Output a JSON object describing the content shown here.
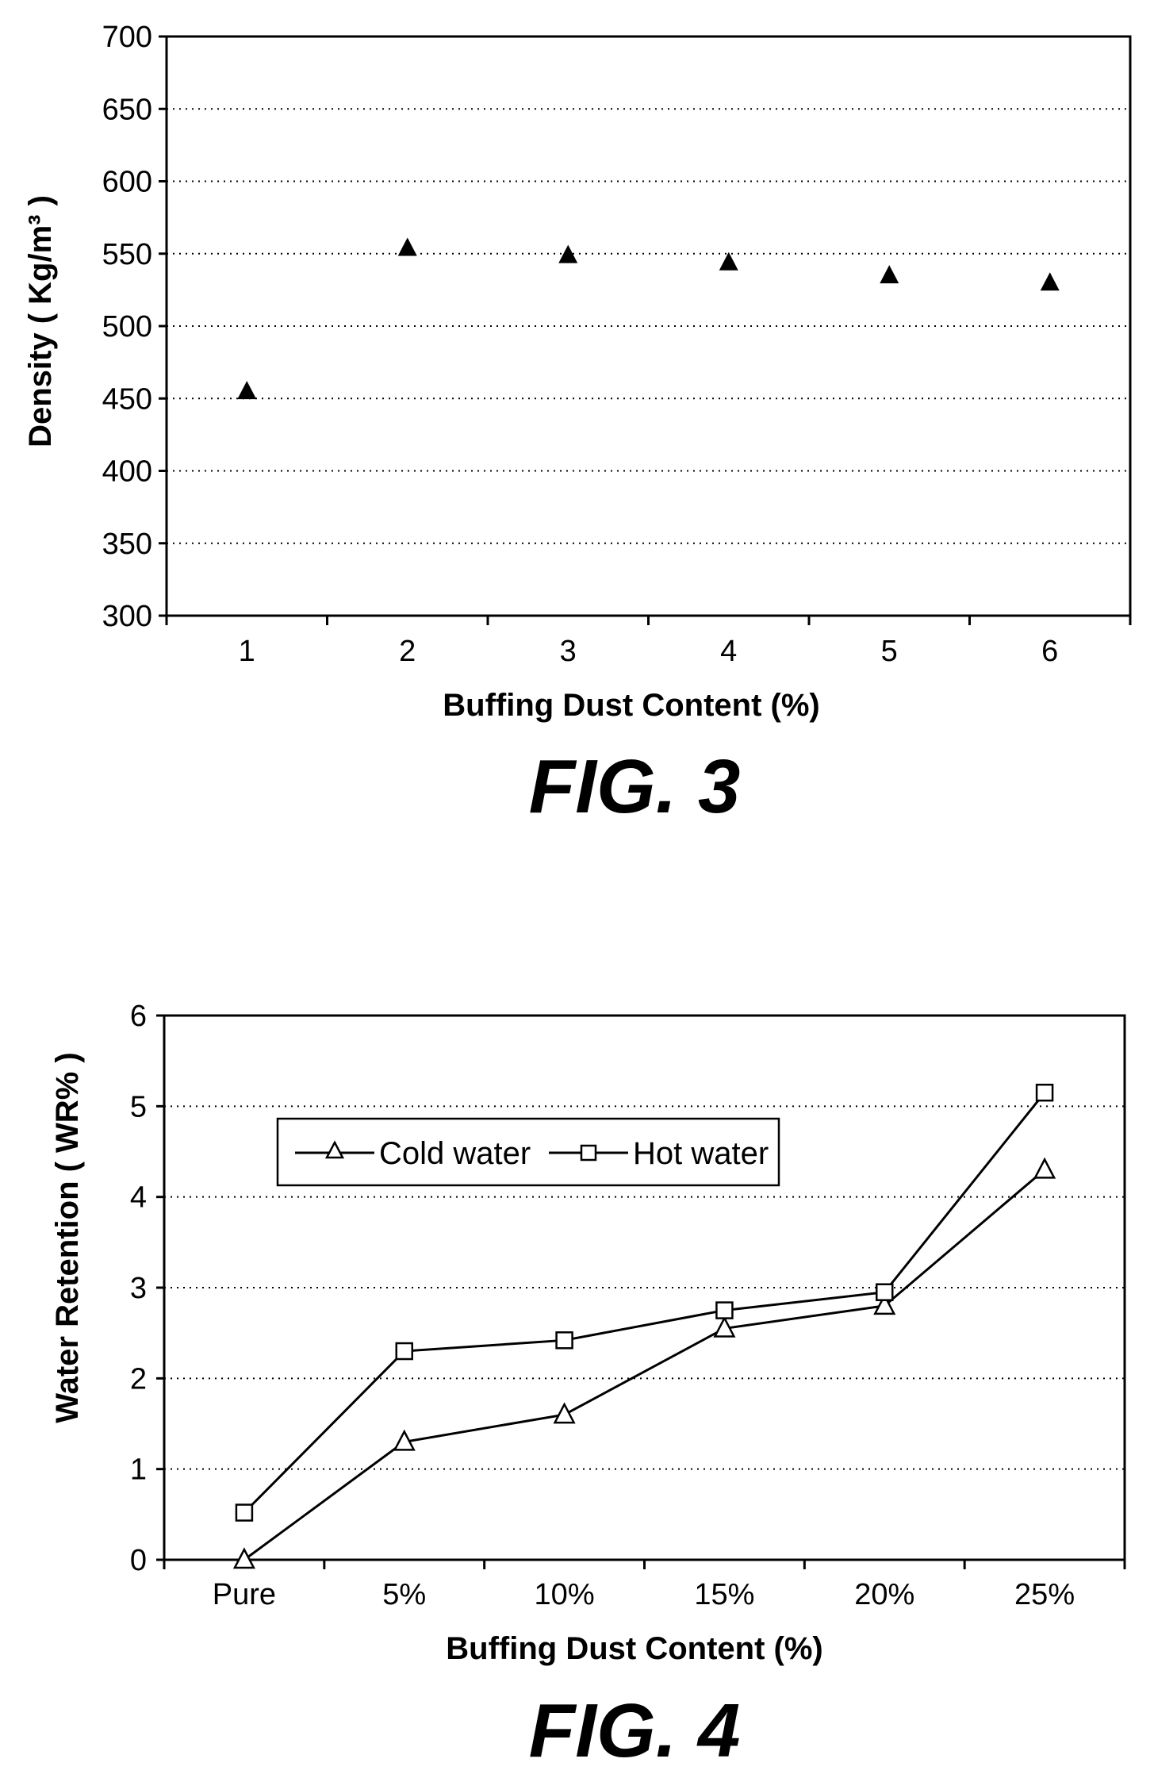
{
  "chart_data": [
    {
      "type": "scatter",
      "figure_label": "FIG. 3",
      "xlabel": "Buffing Dust Content (%)",
      "ylabel": "Density ( Kg/m³ )",
      "x": [
        1,
        2,
        3,
        4,
        5,
        6
      ],
      "y": [
        455,
        554,
        549,
        544,
        535,
        530
      ],
      "xticks": [
        "1",
        "2",
        "3",
        "4",
        "5",
        "6"
      ],
      "yticks": [
        "300",
        "350",
        "400",
        "450",
        "500",
        "550",
        "600",
        "650",
        "700"
      ],
      "ylim": [
        300,
        700
      ],
      "xlim": [
        0.5,
        6.5
      ],
      "grid": true,
      "marker": "filled-triangle"
    },
    {
      "type": "line",
      "figure_label": "FIG. 4",
      "xlabel": "Buffing Dust Content (%)",
      "ylabel": "Water Retention ( WR% )",
      "categories": [
        "Pure",
        "5%",
        "10%",
        "15%",
        "20%",
        "25%"
      ],
      "series": [
        {
          "name": "Cold water",
          "marker": "open-triangle",
          "values": [
            0,
            1.3,
            1.6,
            2.55,
            2.8,
            4.3
          ]
        },
        {
          "name": "Hot water",
          "marker": "open-square",
          "values": [
            0.52,
            2.3,
            2.42,
            2.75,
            2.95,
            5.15
          ]
        }
      ],
      "yticks": [
        "0",
        "1",
        "2",
        "3",
        "4",
        "5",
        "6"
      ],
      "ylim": [
        0,
        6
      ],
      "grid": true,
      "legend_position": "top-left-inside"
    }
  ]
}
